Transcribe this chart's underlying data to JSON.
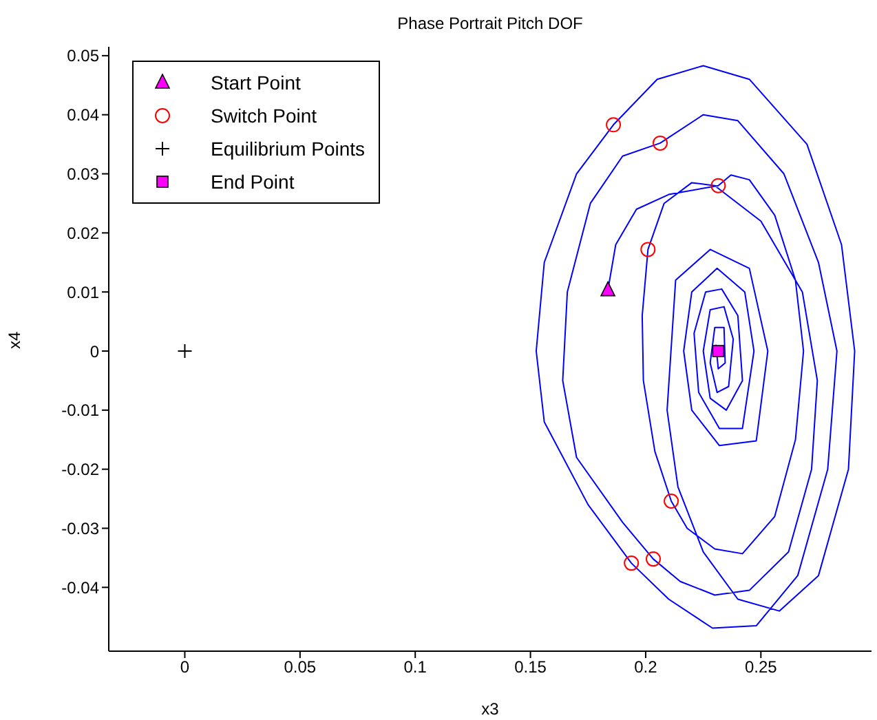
{
  "chart_data": {
    "type": "line",
    "title": "Phase Portrait Pitch DOF",
    "xlabel": "x3",
    "ylabel": "x4",
    "xlim": [
      -0.033,
      0.298
    ],
    "xticks": [
      0,
      0.05,
      0.1,
      0.15,
      0.2,
      0.25
    ],
    "ylim": [
      -0.0508,
      0.0515
    ],
    "yticks": [
      -0.04,
      -0.03,
      -0.02,
      -0.01,
      0,
      0.01,
      0.02,
      0.03,
      0.04,
      0.05
    ],
    "grid": false,
    "legend": "top left",
    "series": [
      {
        "color": "#0000ff",
        "marker": "none",
        "x": [
          0.1836,
          0.187,
          0.196,
          0.21,
          0.2315,
          0.237,
          0.245,
          0.256,
          0.265,
          0.2685,
          0.265,
          0.256,
          0.242,
          0.23,
          0.218,
          0.2111,
          0.204,
          0.199,
          0.1985,
          0.201,
          0.208,
          0.22,
          0.23,
          0.25,
          0.268,
          0.2745,
          0.272,
          0.262,
          0.245,
          0.23,
          0.215,
          0.2033,
          0.19,
          0.17,
          0.164,
          0.166,
          0.176,
          0.19,
          0.2063,
          0.225,
          0.24,
          0.26,
          0.275,
          0.283,
          0.279,
          0.266,
          0.248,
          0.229,
          0.21,
          0.1938,
          0.175,
          0.156,
          0.1525,
          0.156,
          0.17,
          0.186,
          0.205,
          0.225,
          0.245,
          0.27,
          0.285,
          0.2907,
          0.288,
          0.275,
          0.258,
          0.24,
          0.225,
          0.214,
          0.2093,
          0.213,
          0.228,
          0.245,
          0.253,
          0.248,
          0.232,
          0.22,
          0.2165,
          0.22,
          0.231,
          0.243,
          0.247,
          0.242,
          0.232,
          0.223,
          0.221,
          0.226,
          0.233,
          0.24,
          0.242,
          0.235,
          0.228,
          0.225,
          0.228,
          0.234,
          0.238,
          0.236,
          0.231,
          0.228,
          0.23,
          0.234,
          0.2345,
          0.2315,
          0.2305,
          0.2315
        ],
        "values": [
          0.0103,
          0.018,
          0.024,
          0.0265,
          0.028,
          0.0298,
          0.029,
          0.023,
          0.012,
          0,
          -0.015,
          -0.028,
          -0.0343,
          -0.0335,
          -0.03,
          -0.0254,
          -0.017,
          -0.005,
          0.006,
          0.0172,
          0.025,
          0.0285,
          0.028,
          0.022,
          0.01,
          -0.005,
          -0.02,
          -0.034,
          -0.0405,
          -0.0413,
          -0.039,
          -0.0352,
          -0.029,
          -0.018,
          -0.005,
          0.01,
          0.025,
          0.033,
          0.0352,
          0.04,
          0.039,
          0.03,
          0.015,
          0,
          -0.02,
          -0.038,
          -0.0465,
          -0.0469,
          -0.042,
          -0.0359,
          -0.026,
          -0.012,
          0,
          0.015,
          0.03,
          0.0383,
          0.046,
          0.0483,
          0.046,
          0.035,
          0.018,
          0,
          -0.02,
          -0.038,
          -0.044,
          -0.042,
          -0.034,
          -0.023,
          -0.01,
          0.012,
          0.0172,
          0.014,
          0,
          -0.0152,
          -0.016,
          -0.01,
          0,
          0.01,
          0.014,
          0.01,
          0,
          -0.0131,
          -0.0131,
          -0.007,
          0.003,
          0.01,
          0.0105,
          0.006,
          -0.005,
          -0.01,
          -0.008,
          0,
          0.007,
          0.0075,
          0.002,
          -0.006,
          -0.007,
          -0.002,
          0.004,
          0.004,
          -0.002,
          -0.003,
          0.001,
          0
        ]
      },
      {
        "name": "Start Point",
        "type": "scatter",
        "color": "#ff00ff",
        "marker": "triangle",
        "x": [
          0.1836
        ],
        "values": [
          0.0103
        ]
      },
      {
        "name": "Switch Point",
        "type": "scatter",
        "color": "#ff0000",
        "marker": "circle",
        "x": [
          0.186,
          0.2063,
          0.2315,
          0.201,
          0.2111,
          0.2033,
          0.1938
        ],
        "values": [
          0.0383,
          0.0352,
          0.028,
          0.0172,
          -0.0254,
          -0.0352,
          -0.0359
        ]
      },
      {
        "name": "Equilibrium Points",
        "type": "scatter",
        "color": "#000000",
        "marker": "cross",
        "x": [
          0
        ],
        "values": [
          0
        ]
      },
      {
        "name": "End Point",
        "type": "scatter",
        "color": "#ff00ff",
        "marker": "square",
        "x": [
          0.2315
        ],
        "values": [
          0
        ]
      }
    ]
  }
}
